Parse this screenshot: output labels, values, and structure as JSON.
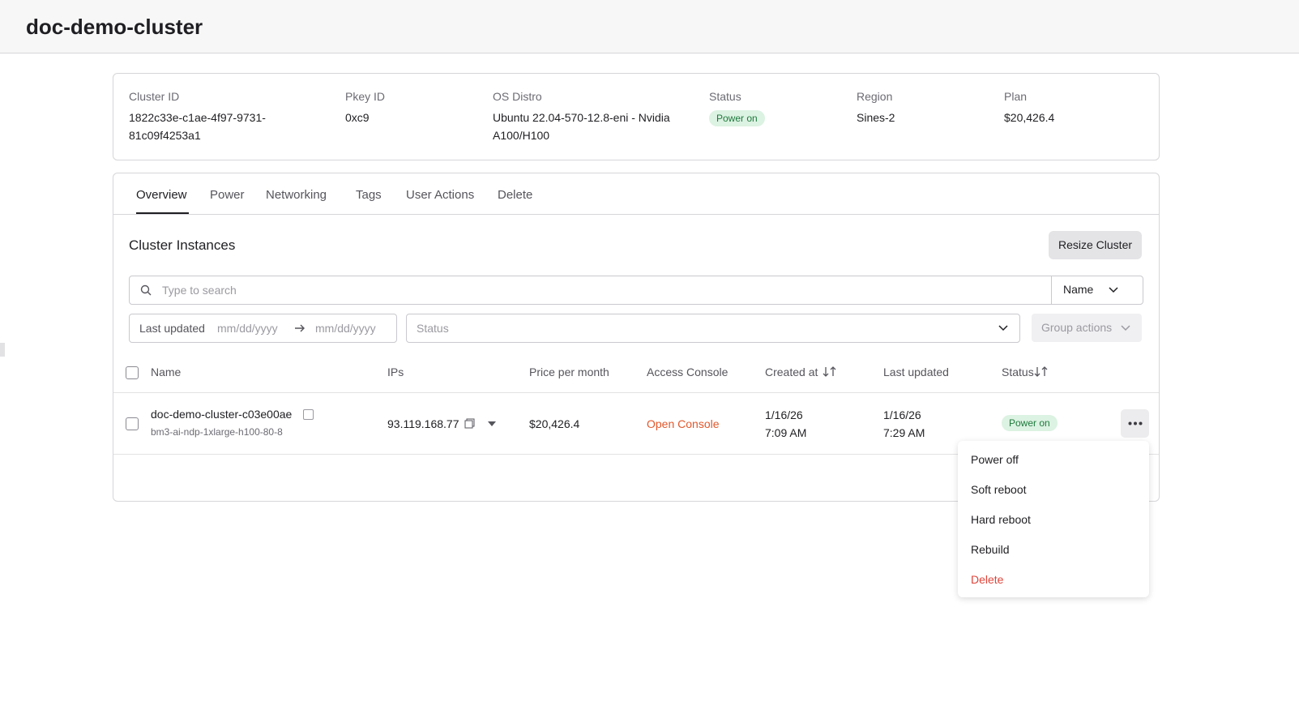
{
  "header": {
    "title": "doc-demo-cluster"
  },
  "summary": [
    {
      "label": "Cluster ID",
      "value": "1822c33e-c1ae-4f97-9731-81c09f4253a1"
    },
    {
      "label": "Pkey ID",
      "value": "0xc9"
    },
    {
      "label": "OS Distro",
      "value": "Ubuntu 22.04-570-12.8-eni - Nvidia A100/H100"
    },
    {
      "label": "Status",
      "value": "Power on"
    },
    {
      "label": "Region",
      "value": "Sines-2"
    },
    {
      "label": "Plan",
      "value": "$20,426.4"
    }
  ],
  "tabs": [
    "Overview",
    "Power",
    "Networking",
    "Tags",
    "User Actions",
    "Delete"
  ],
  "section": {
    "title": "Cluster Instances",
    "button": "Resize Cluster"
  },
  "search": {
    "placeholder": "Type to search",
    "field": "Name"
  },
  "filters": {
    "date_label": "Last updated",
    "from": "mm/dd/yyyy",
    "to": "mm/dd/yyyy",
    "status": "Status",
    "group_actions": "Group actions"
  },
  "table": {
    "columns": [
      "Name",
      "IPs",
      "Price per month",
      "Access Console",
      "Created at",
      "Last updated",
      "Status"
    ],
    "rows": [
      {
        "name": "doc-demo-cluster-c03e00ae",
        "subname": "bm3-ai-ndp-1xlarge-h100-80-8",
        "ip": "93.119.168.77",
        "price": "$20,426.4",
        "console": "Open Console",
        "created_date": "1/16/26",
        "created_time": "7:09 AM",
        "updated_date": "1/16/26",
        "updated_time": "7:29 AM",
        "status": "Power on"
      }
    ]
  },
  "menu": [
    "Power off",
    "Soft reboot",
    "Hard reboot",
    "Rebuild",
    "Delete"
  ]
}
